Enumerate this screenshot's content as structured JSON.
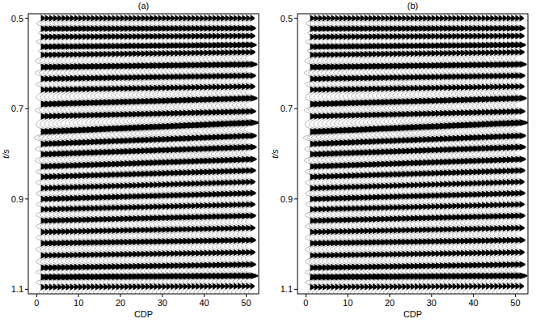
{
  "chart_data": [
    {
      "type": "wiggle",
      "title": "(a)",
      "x_label": "CDP",
      "y_label": "t/s",
      "xlim": [
        -2,
        53
      ],
      "ylim": [
        0.49,
        1.11
      ],
      "xticks": [
        0,
        10,
        20,
        30,
        40,
        50
      ],
      "yticks": [
        0.5,
        0.7,
        0.9,
        1.1
      ],
      "color": "#000000",
      "x": [
        1,
        2,
        3,
        4,
        5,
        6,
        7,
        8,
        9,
        10,
        11,
        12,
        13,
        14,
        15,
        16,
        17,
        18,
        19,
        20,
        21,
        22,
        23,
        24,
        25,
        26,
        27,
        28,
        29,
        30,
        31,
        32,
        33,
        34,
        35,
        36,
        37,
        38,
        39,
        40,
        41,
        42,
        43,
        44,
        45,
        46,
        47,
        48,
        49,
        50,
        51
      ],
      "events": [
        {
          "t_first": 0.5,
          "t_last": 0.5,
          "amplitude": 0.6
        },
        {
          "t_first": 0.523,
          "t_last": 0.522,
          "amplitude": 0.8
        },
        {
          "t_first": 0.541,
          "t_last": 0.539,
          "amplitude": 0.7
        },
        {
          "t_first": 0.563,
          "t_last": 0.559,
          "amplitude": 0.9
        },
        {
          "t_first": 0.581,
          "t_last": 0.575,
          "amplitude": 0.7
        },
        {
          "t_first": 0.608,
          "t_last": 0.602,
          "amplitude": 1.0
        },
        {
          "t_first": 0.634,
          "t_last": 0.627,
          "amplitude": 0.8
        },
        {
          "t_first": 0.658,
          "t_last": 0.651,
          "amplitude": 0.7
        },
        {
          "t_first": 0.69,
          "t_last": 0.677,
          "amplitude": 1.0
        },
        {
          "t_first": 0.717,
          "t_last": 0.706,
          "amplitude": 0.8
        },
        {
          "t_first": 0.751,
          "t_last": 0.731,
          "amplitude": 1.2
        },
        {
          "t_first": 0.778,
          "t_last": 0.76,
          "amplitude": 0.9
        },
        {
          "t_first": 0.801,
          "t_last": 0.785,
          "amplitude": 0.9
        },
        {
          "t_first": 0.828,
          "t_last": 0.812,
          "amplitude": 0.9
        },
        {
          "t_first": 0.851,
          "t_last": 0.837,
          "amplitude": 0.8
        },
        {
          "t_first": 0.876,
          "t_last": 0.862,
          "amplitude": 0.7
        },
        {
          "t_first": 0.9,
          "t_last": 0.887,
          "amplitude": 0.8
        },
        {
          "t_first": 0.923,
          "t_last": 0.912,
          "amplitude": 0.7
        },
        {
          "t_first": 0.948,
          "t_last": 0.937,
          "amplitude": 0.8
        },
        {
          "t_first": 0.973,
          "t_last": 0.964,
          "amplitude": 0.7
        },
        {
          "t_first": 0.998,
          "t_last": 0.991,
          "amplitude": 0.8
        },
        {
          "t_first": 1.025,
          "t_last": 1.018,
          "amplitude": 0.7
        },
        {
          "t_first": 1.052,
          "t_last": 1.045,
          "amplitude": 0.8
        },
        {
          "t_first": 1.073,
          "t_last": 1.07,
          "amplitude": 1.1
        },
        {
          "t_first": 1.095,
          "t_last": 1.093,
          "amplitude": 0.6
        }
      ]
    },
    {
      "type": "wiggle",
      "title": "(b)",
      "x_label": "CDP",
      "y_label": "t/s",
      "xlim": [
        -2,
        53
      ],
      "ylim": [
        0.49,
        1.11
      ],
      "xticks": [
        0,
        10,
        20,
        30,
        40,
        50
      ],
      "yticks": [
        0.5,
        0.7,
        0.9,
        1.1
      ],
      "color": "#000000",
      "x": [
        1,
        2,
        3,
        4,
        5,
        6,
        7,
        8,
        9,
        10,
        11,
        12,
        13,
        14,
        15,
        16,
        17,
        18,
        19,
        20,
        21,
        22,
        23,
        24,
        25,
        26,
        27,
        28,
        29,
        30,
        31,
        32,
        33,
        34,
        35,
        36,
        37,
        38,
        39,
        40,
        41,
        42,
        43,
        44,
        45,
        46,
        47,
        48,
        49,
        50,
        51
      ],
      "events": [
        {
          "t_first": 0.5,
          "t_last": 0.5,
          "amplitude": 0.6
        },
        {
          "t_first": 0.523,
          "t_last": 0.522,
          "amplitude": 0.8
        },
        {
          "t_first": 0.541,
          "t_last": 0.539,
          "amplitude": 0.7
        },
        {
          "t_first": 0.563,
          "t_last": 0.559,
          "amplitude": 0.9
        },
        {
          "t_first": 0.581,
          "t_last": 0.575,
          "amplitude": 0.7
        },
        {
          "t_first": 0.608,
          "t_last": 0.602,
          "amplitude": 1.0
        },
        {
          "t_first": 0.634,
          "t_last": 0.627,
          "amplitude": 0.8
        },
        {
          "t_first": 0.658,
          "t_last": 0.651,
          "amplitude": 0.7
        },
        {
          "t_first": 0.69,
          "t_last": 0.677,
          "amplitude": 1.0
        },
        {
          "t_first": 0.717,
          "t_last": 0.706,
          "amplitude": 0.8
        },
        {
          "t_first": 0.751,
          "t_last": 0.731,
          "amplitude": 1.2
        },
        {
          "t_first": 0.778,
          "t_last": 0.76,
          "amplitude": 0.9
        },
        {
          "t_first": 0.801,
          "t_last": 0.785,
          "amplitude": 0.9
        },
        {
          "t_first": 0.828,
          "t_last": 0.812,
          "amplitude": 0.9
        },
        {
          "t_first": 0.851,
          "t_last": 0.837,
          "amplitude": 0.8
        },
        {
          "t_first": 0.876,
          "t_last": 0.862,
          "amplitude": 0.7
        },
        {
          "t_first": 0.9,
          "t_last": 0.887,
          "amplitude": 0.8
        },
        {
          "t_first": 0.923,
          "t_last": 0.912,
          "amplitude": 0.7
        },
        {
          "t_first": 0.948,
          "t_last": 0.937,
          "amplitude": 0.8
        },
        {
          "t_first": 0.973,
          "t_last": 0.964,
          "amplitude": 0.7
        },
        {
          "t_first": 0.998,
          "t_last": 0.991,
          "amplitude": 0.8
        },
        {
          "t_first": 1.025,
          "t_last": 1.018,
          "amplitude": 0.7
        },
        {
          "t_first": 1.052,
          "t_last": 1.045,
          "amplitude": 0.8
        },
        {
          "t_first": 1.073,
          "t_last": 1.07,
          "amplitude": 1.1
        },
        {
          "t_first": 1.095,
          "t_last": 1.093,
          "amplitude": 0.6
        }
      ]
    }
  ]
}
